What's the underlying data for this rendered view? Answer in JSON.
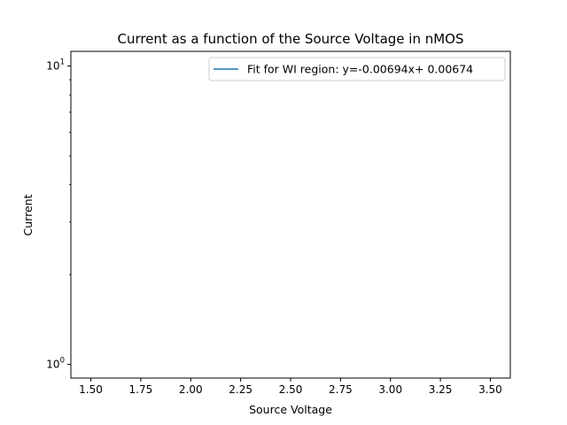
{
  "chart_data": {
    "type": "line",
    "title": "Current as a function of the Source Voltage in nMOS",
    "xlabel": "Source Voltage",
    "ylabel": "Current",
    "xlim": [
      1.4,
      3.6
    ],
    "ylim": [
      0.9,
      11.2
    ],
    "yscale": "log",
    "grid": false,
    "legend_position": "top-right",
    "x_ticks": [
      1.5,
      1.75,
      2.0,
      2.25,
      2.5,
      2.75,
      3.0,
      3.25,
      3.5
    ],
    "x_tick_labels": [
      "1.50",
      "1.75",
      "2.00",
      "2.25",
      "2.50",
      "2.75",
      "3.00",
      "3.25",
      "3.50"
    ],
    "y_major_ticks": [
      1,
      10
    ],
    "y_major_labels": [
      {
        "base": "10",
        "exp": "0"
      },
      {
        "base": "10",
        "exp": "1"
      }
    ],
    "y_minor_ticks": [
      2,
      3,
      4,
      5,
      6,
      7,
      8,
      9
    ],
    "series": [
      {
        "name": "Fit for WI region: y=-0.00694x+ 0.00674",
        "color": "#1f77b4",
        "x": [],
        "y": []
      }
    ]
  }
}
